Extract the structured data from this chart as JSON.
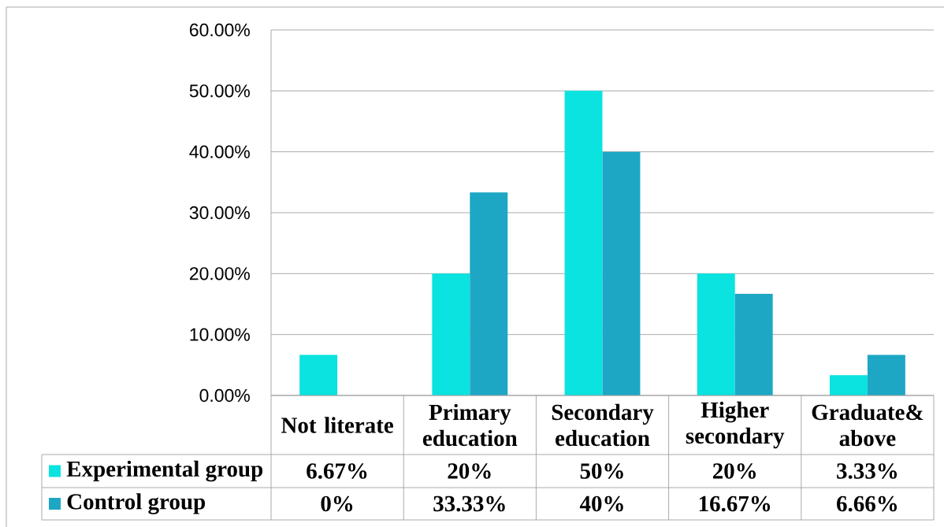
{
  "chart_data": {
    "type": "bar",
    "categories": [
      "Not literate",
      "Primary education",
      "Secondary education",
      "Higher secondary",
      "Graduate& above"
    ],
    "series": [
      {
        "name": "Experimental group",
        "color": "#0ae3df",
        "values": [
          6.67,
          20,
          50,
          20,
          3.33
        ],
        "value_labels": [
          "6.67%",
          "20%",
          "50%",
          "20%",
          "3.33%"
        ]
      },
      {
        "name": "Control group",
        "color": "#1da7c4",
        "values": [
          0,
          33.33,
          40,
          16.67,
          6.66
        ],
        "value_labels": [
          "0%",
          "33.33%",
          "40%",
          "16.67%",
          "6.66%"
        ]
      }
    ],
    "ylim": [
      0,
      60
    ],
    "yticks": [
      {
        "value": 0,
        "label": "0.00%"
      },
      {
        "value": 10,
        "label": "10.00%"
      },
      {
        "value": 20,
        "label": "20.00%"
      },
      {
        "value": 30,
        "label": "30.00%"
      },
      {
        "value": 40,
        "label": "40.00%"
      },
      {
        "value": 50,
        "label": "50.00%"
      },
      {
        "value": 60,
        "label": "60.00%"
      }
    ],
    "grid": "y",
    "legend": "bottom"
  }
}
